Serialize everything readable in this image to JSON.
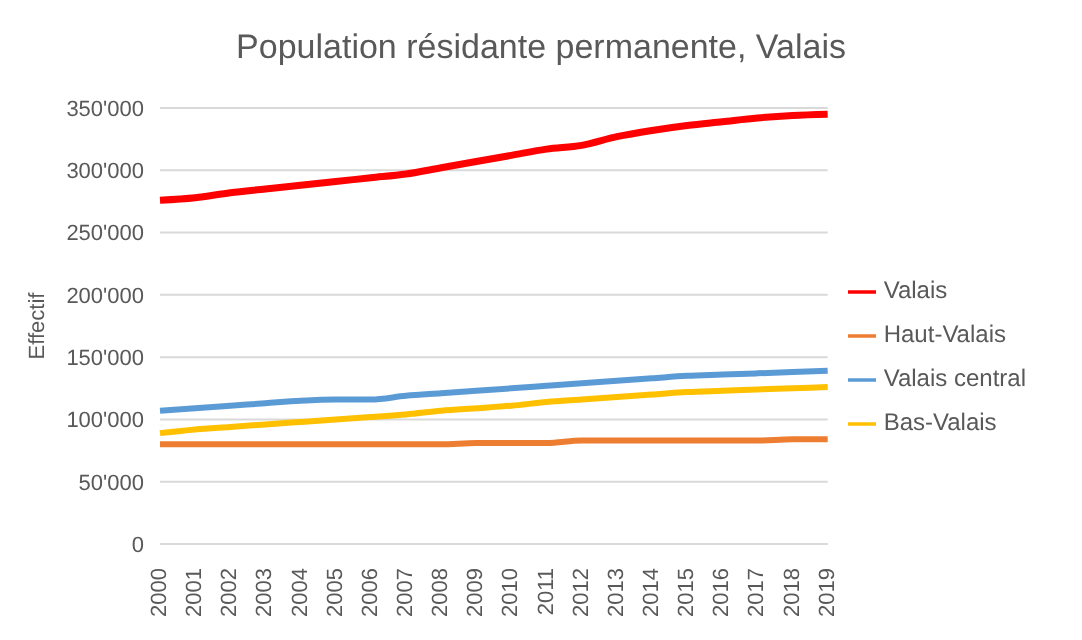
{
  "chart_data": {
    "type": "line",
    "title": "Population résidante permanente, Valais",
    "ylabel": "Effectif",
    "categories": [
      "2000",
      "2001",
      "2002",
      "2003",
      "2004",
      "2005",
      "2006",
      "2007",
      "2008",
      "2009",
      "2010",
      "2011",
      "2012",
      "2013",
      "2014",
      "2015",
      "2016",
      "2017",
      "2018",
      "2019"
    ],
    "series": [
      {
        "name": "Valais",
        "color": "#ff0000",
        "values": [
          276000,
          278000,
          282000,
          285000,
          288000,
          291000,
          294000,
          297000,
          302000,
          307000,
          312000,
          317000,
          320000,
          327000,
          332000,
          336000,
          339000,
          342000,
          344000,
          345000
        ]
      },
      {
        "name": "Haut-Valais",
        "color": "#ed7d31",
        "values": [
          80000,
          80000,
          80000,
          80000,
          80000,
          80000,
          80000,
          80000,
          80000,
          81000,
          81000,
          81000,
          83000,
          83000,
          83000,
          83000,
          83000,
          83000,
          84000,
          84000
        ]
      },
      {
        "name": "Valais central",
        "color": "#5b9bd5",
        "values": [
          107000,
          109000,
          111000,
          113000,
          115000,
          116000,
          116000,
          119000,
          121000,
          123000,
          125000,
          127000,
          129000,
          131000,
          133000,
          135000,
          136000,
          137000,
          138000,
          139000
        ]
      },
      {
        "name": "Bas-Valais",
        "color": "#ffc000",
        "values": [
          89000,
          92000,
          94000,
          96000,
          98000,
          100000,
          102000,
          104000,
          107000,
          109000,
          111000,
          114000,
          116000,
          118000,
          120000,
          122000,
          123000,
          124000,
          125000,
          126000
        ]
      }
    ],
    "ylim": [
      0,
      350000
    ],
    "yticks": [
      {
        "value": 0,
        "label": "0"
      },
      {
        "value": 50000,
        "label": "50'000"
      },
      {
        "value": 100000,
        "label": "100'000"
      },
      {
        "value": 150000,
        "label": "150'000"
      },
      {
        "value": 200000,
        "label": "200'000"
      },
      {
        "value": 250000,
        "label": "250'000"
      },
      {
        "value": 300000,
        "label": "300'000"
      },
      {
        "value": 350000,
        "label": "350'000"
      }
    ],
    "grid": "y",
    "legend": "right",
    "marker": "none",
    "line_style": "solid"
  }
}
